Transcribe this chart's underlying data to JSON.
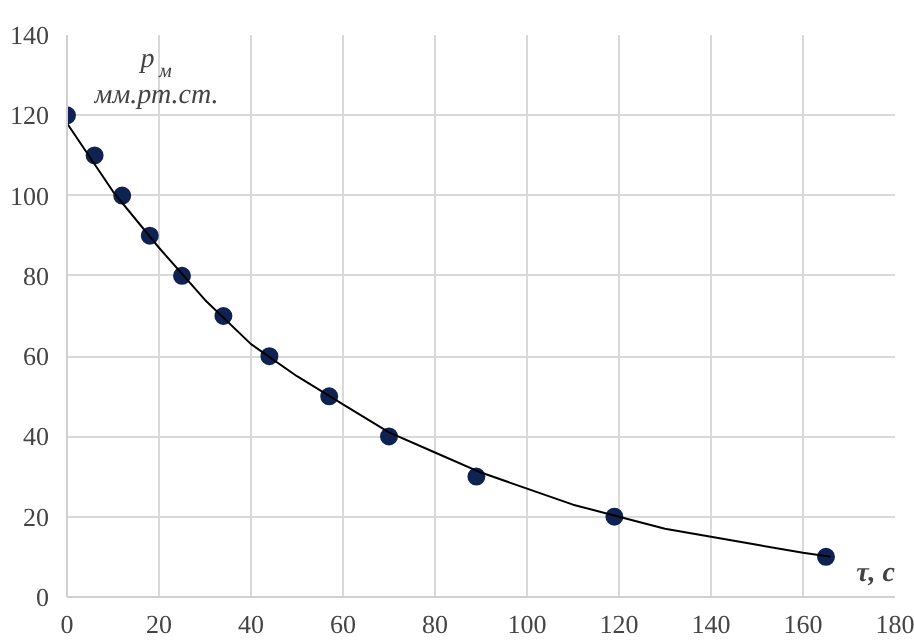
{
  "chart_data": {
    "type": "scatter",
    "xlabel": "τ, с",
    "ylabel": "p$_{м}$ мм.рт.ст.",
    "xlim": [
      0,
      180
    ],
    "ylim": [
      0,
      140
    ],
    "xticks": [
      0,
      20,
      40,
      60,
      80,
      100,
      120,
      140,
      160,
      180
    ],
    "yticks": [
      0,
      20,
      40,
      60,
      80,
      100,
      120,
      140
    ],
    "grid": true,
    "marker": "circle",
    "series": [
      {
        "color": "#0f2352",
        "x": [
          0,
          6,
          12,
          18,
          25,
          34,
          44,
          57,
          70,
          89,
          119,
          165
        ],
        "values": [
          120,
          110,
          100,
          90,
          80,
          70,
          60,
          50,
          40,
          30,
          20,
          10
        ]
      },
      {
        "type": "line",
        "color": "#000000",
        "line_style": "solid",
        "marker": "none",
        "x": [
          0,
          10,
          20,
          30,
          40,
          50,
          60,
          70,
          80,
          90,
          100,
          110,
          120,
          130,
          140,
          150,
          160,
          166
        ],
        "values": [
          118,
          101,
          87,
          74,
          63,
          55,
          48,
          41,
          36,
          31,
          27,
          23,
          20,
          17,
          15,
          13,
          11,
          10
        ]
      }
    ]
  }
}
